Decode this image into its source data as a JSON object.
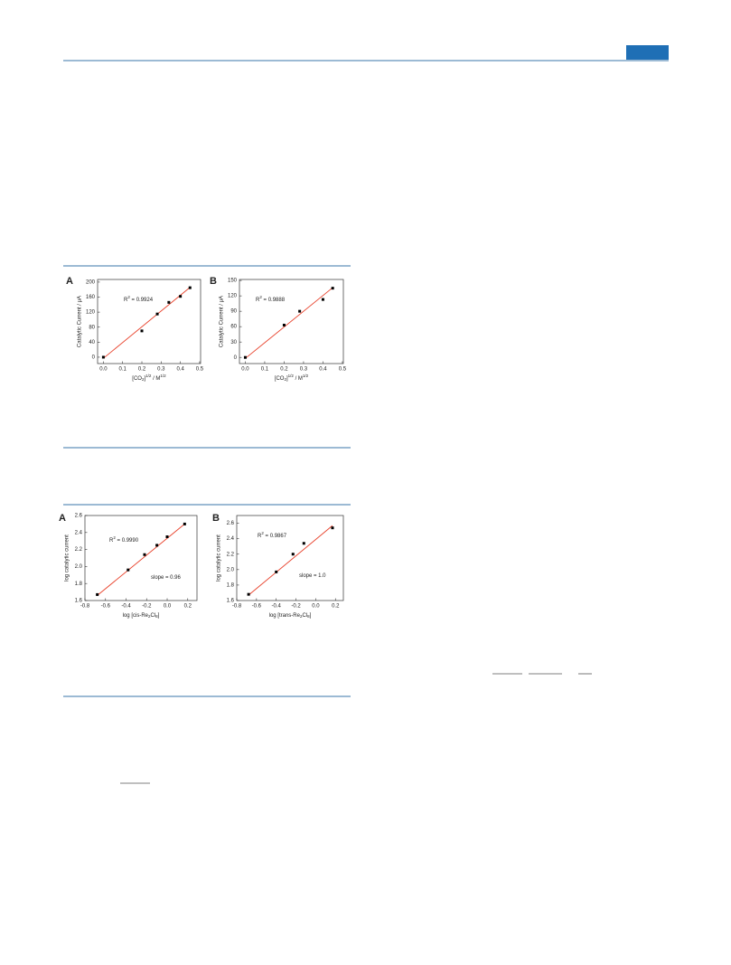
{
  "chart_data": [
    {
      "type": "scatter",
      "label": "A",
      "xlabel": [
        {
          "text": "[CO"
        },
        {
          "text": "2",
          "style": "sub"
        },
        {
          "text": "]"
        },
        {
          "text": "1/2",
          "style": "sup"
        },
        {
          "text": "  /  M"
        },
        {
          "text": "1/2",
          "style": "sup"
        }
      ],
      "ylabel": "Catalytic Current  /  μA",
      "annotations": [
        [
          {
            "text": "R"
          },
          {
            "text": "2",
            "style": "sup"
          },
          {
            "text": " = 0.9924"
          }
        ]
      ],
      "xlim": [
        -0.03,
        0.505
      ],
      "ylim": [
        -17,
        207
      ],
      "xticks": [
        {
          "value": 0,
          "label": "0.0"
        },
        0.1,
        0.2,
        0.3,
        0.4,
        0.5
      ],
      "yticks": [
        0,
        40,
        80,
        120,
        160,
        200
      ],
      "series": [
        {
          "color": "#000000",
          "x": [
            0,
            0.2,
            0.28,
            0.34,
            0.4,
            0.45
          ],
          "values": [
            0,
            70,
            115,
            146,
            162,
            185
          ]
        }
      ],
      "fit": {
        "color": "#e8402a",
        "x": [
          0,
          0.45
        ],
        "values": [
          -3,
          186
        ]
      }
    },
    {
      "type": "scatter",
      "label": "B",
      "xlabel": [
        {
          "text": "[CO"
        },
        {
          "text": "2",
          "style": "sub"
        },
        {
          "text": "]"
        },
        {
          "text": "1/2",
          "style": "sup"
        },
        {
          "text": "  /  M"
        },
        {
          "text": "1/2",
          "style": "sup"
        }
      ],
      "ylabel": "Catalytic Current  /  μA",
      "annotations": [
        [
          {
            "text": "R"
          },
          {
            "text": "2",
            "style": "sup"
          },
          {
            "text": " = 0.9888"
          }
        ]
      ],
      "xlim": [
        -0.03,
        0.505
      ],
      "ylim": [
        -12,
        152
      ],
      "xticks": [
        {
          "value": 0,
          "label": "0.0"
        },
        0.1,
        0.2,
        0.3,
        0.4,
        0.5
      ],
      "yticks": [
        0,
        30,
        60,
        90,
        120,
        150
      ],
      "series": [
        {
          "color": "#000000",
          "x": [
            0,
            0.2,
            0.28,
            0.4,
            0.45
          ],
          "values": [
            0,
            63,
            90,
            113,
            135
          ]
        }
      ],
      "fit": {
        "color": "#e8402a",
        "x": [
          0,
          0.45
        ],
        "values": [
          -2,
          136
        ]
      }
    },
    {
      "type": "scatter",
      "label": "A",
      "xlabel": [
        {
          "text": "log [cis-Re"
        },
        {
          "text": "2",
          "style": "sub"
        },
        {
          "text": "Cl"
        },
        {
          "text": "8",
          "style": "sub"
        },
        {
          "text": "]"
        }
      ],
      "ylabel": "log catalytic current",
      "annotations": [
        [
          {
            "text": "R"
          },
          {
            "text": "2",
            "style": "sup"
          },
          {
            "text": " = 0.9990"
          }
        ],
        [
          {
            "text": "slope = 0.96"
          }
        ]
      ],
      "xlim": [
        -0.8,
        0.29
      ],
      "ylim": [
        1.6,
        2.6
      ],
      "xticks": [
        -0.8,
        -0.6,
        -0.4,
        -0.2,
        {
          "value": 0,
          "label": "0.0"
        },
        0.2
      ],
      "yticks": [
        1.6,
        1.8,
        {
          "value": 2,
          "label": "2.0"
        },
        2.2,
        2.4,
        2.6
      ],
      "series": [
        {
          "color": "#000000",
          "x": [
            -0.68,
            -0.38,
            -0.22,
            -0.1,
            0,
            0.17
          ],
          "values": [
            1.67,
            1.96,
            2.14,
            2.25,
            2.35,
            2.5
          ]
        }
      ],
      "fit": {
        "color": "#e8402a",
        "x": [
          -0.68,
          0.17
        ],
        "values": [
          1.66,
          2.5
        ]
      }
    },
    {
      "type": "scatter",
      "label": "B",
      "xlabel": [
        {
          "text": "log [trans-Re"
        },
        {
          "text": "2",
          "style": "sub"
        },
        {
          "text": "Cl"
        },
        {
          "text": "8",
          "style": "sub"
        },
        {
          "text": "]"
        }
      ],
      "ylabel": "log catalytic current",
      "annotations": [
        [
          {
            "text": "R"
          },
          {
            "text": "2",
            "style": "sup"
          },
          {
            "text": " = 0.9867"
          }
        ],
        [
          {
            "text": "slope = 1.0"
          }
        ]
      ],
      "xlim": [
        -0.8,
        0.28
      ],
      "ylim": [
        1.6,
        2.7
      ],
      "xticks": [
        -0.8,
        -0.6,
        -0.4,
        -0.2,
        {
          "value": 0,
          "label": "0.0"
        },
        0.2
      ],
      "yticks": [
        1.6,
        1.8,
        {
          "value": 2,
          "label": "2.0"
        },
        2.2,
        2.4,
        2.6
      ],
      "series": [
        {
          "color": "#000000",
          "x": [
            -0.68,
            -0.4,
            -0.23,
            -0.12,
            0.17
          ],
          "values": [
            1.68,
            1.97,
            2.2,
            2.34,
            2.54
          ]
        }
      ],
      "fit": {
        "color": "#e8402a",
        "x": [
          -0.68,
          0.17
        ],
        "values": [
          1.67,
          2.57
        ]
      }
    }
  ]
}
